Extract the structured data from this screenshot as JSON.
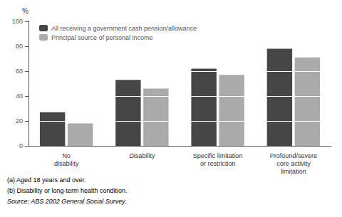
{
  "chart_data": {
    "type": "bar",
    "categories": [
      "No\ndisability",
      "Disability",
      "Specific limitation\nor restriction",
      "Profound/severe\ncore activity\nlimitation"
    ],
    "series": [
      {
        "name": "All receiving a government cash pension/allowance",
        "color": "#464646",
        "values": [
          27,
          53,
          62,
          78
        ]
      },
      {
        "name": "Principal source of personal income",
        "color": "#aaaaaa",
        "values": [
          18,
          46,
          57,
          71
        ]
      }
    ],
    "ylabel": "%",
    "ylim": [
      0,
      100
    ],
    "yticks": [
      0,
      20,
      40,
      60,
      80,
      100
    ],
    "grid": false,
    "legend": "upper left",
    "annotations": [
      "(a) Aged 18 years and over.",
      "(b) Disability or long-term health condition.",
      "Source: ABS 2002 General Social Survey."
    ]
  }
}
